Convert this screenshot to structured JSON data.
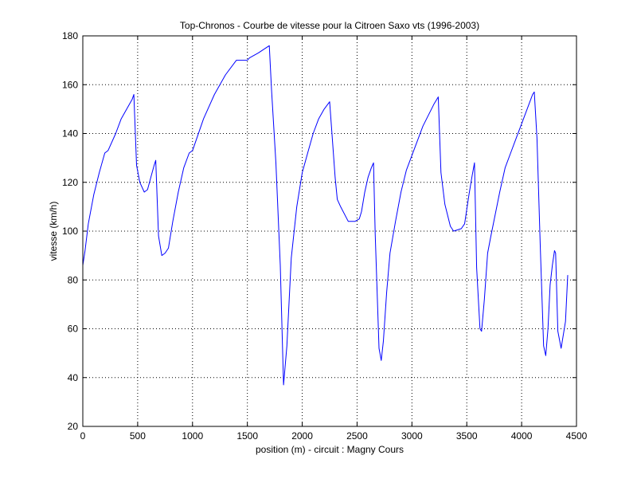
{
  "chart_data": {
    "type": "line",
    "title": "Top-Chronos - Courbe de vitesse pour la Citroen Saxo vts (1996-2003)",
    "xlabel": "position (m) - circuit : Magny Cours",
    "ylabel": "vitesse (km/h)",
    "xlim": [
      0,
      4500
    ],
    "ylim": [
      20,
      180
    ],
    "xticks": [
      0,
      500,
      1000,
      1500,
      2000,
      2500,
      3000,
      3500,
      4000,
      4500
    ],
    "yticks": [
      20,
      40,
      60,
      80,
      100,
      120,
      140,
      160,
      180
    ],
    "grid": true,
    "line_color": "#0000ff",
    "series": [
      {
        "x": [
          0,
          20,
          50,
          100,
          150,
          200,
          230,
          300,
          350,
          400,
          450,
          465,
          490,
          520,
          560,
          590,
          620,
          650,
          665,
          690,
          720,
          750,
          780,
          820,
          870,
          920,
          970,
          1000,
          1100,
          1200,
          1300,
          1400,
          1500,
          1520,
          1600,
          1700,
          1720,
          1760,
          1800,
          1830,
          1860,
          1900,
          1950,
          2000,
          2050,
          2100,
          2150,
          2200,
          2250,
          2300,
          2320,
          2350,
          2420,
          2450,
          2480,
          2520,
          2540,
          2570,
          2600,
          2630,
          2650,
          2665,
          2700,
          2720,
          2740,
          2770,
          2800,
          2850,
          2900,
          2950,
          3000,
          3100,
          3200,
          3240,
          3265,
          3300,
          3350,
          3380,
          3450,
          3480,
          3520,
          3550,
          3570,
          3590,
          3620,
          3635,
          3660,
          3690,
          3720,
          3800,
          3850,
          3900,
          3950,
          4000,
          4050,
          4100,
          4115,
          4140,
          4170,
          4200,
          4220,
          4240,
          4260,
          4280,
          4300,
          4310,
          4330,
          4360,
          4400,
          4420
        ],
        "y": [
          86,
          92,
          103,
          115,
          124,
          132,
          133,
          140,
          146,
          150,
          154,
          156,
          127,
          120,
          116,
          117,
          122,
          127,
          129,
          98,
          90,
          91,
          93,
          104,
          116,
          126,
          132,
          133,
          146,
          156,
          164,
          170,
          170,
          171,
          173,
          176,
          158,
          128,
          86,
          37,
          53,
          89,
          110,
          124,
          132,
          140,
          146,
          150,
          153,
          122,
          113,
          110,
          104,
          104,
          104,
          105,
          108,
          116,
          122,
          126,
          128,
          99,
          52,
          47,
          55,
          75,
          91,
          104,
          116,
          125,
          131,
          143,
          152,
          155,
          124,
          111,
          102,
          100,
          101,
          103,
          115,
          123,
          128,
          85,
          60,
          59,
          72,
          91,
          98,
          116,
          126,
          132,
          138,
          144,
          150,
          156,
          157,
          138,
          94,
          53,
          49,
          60,
          78,
          86,
          92,
          91,
          59,
          52,
          63,
          82
        ]
      }
    ]
  }
}
